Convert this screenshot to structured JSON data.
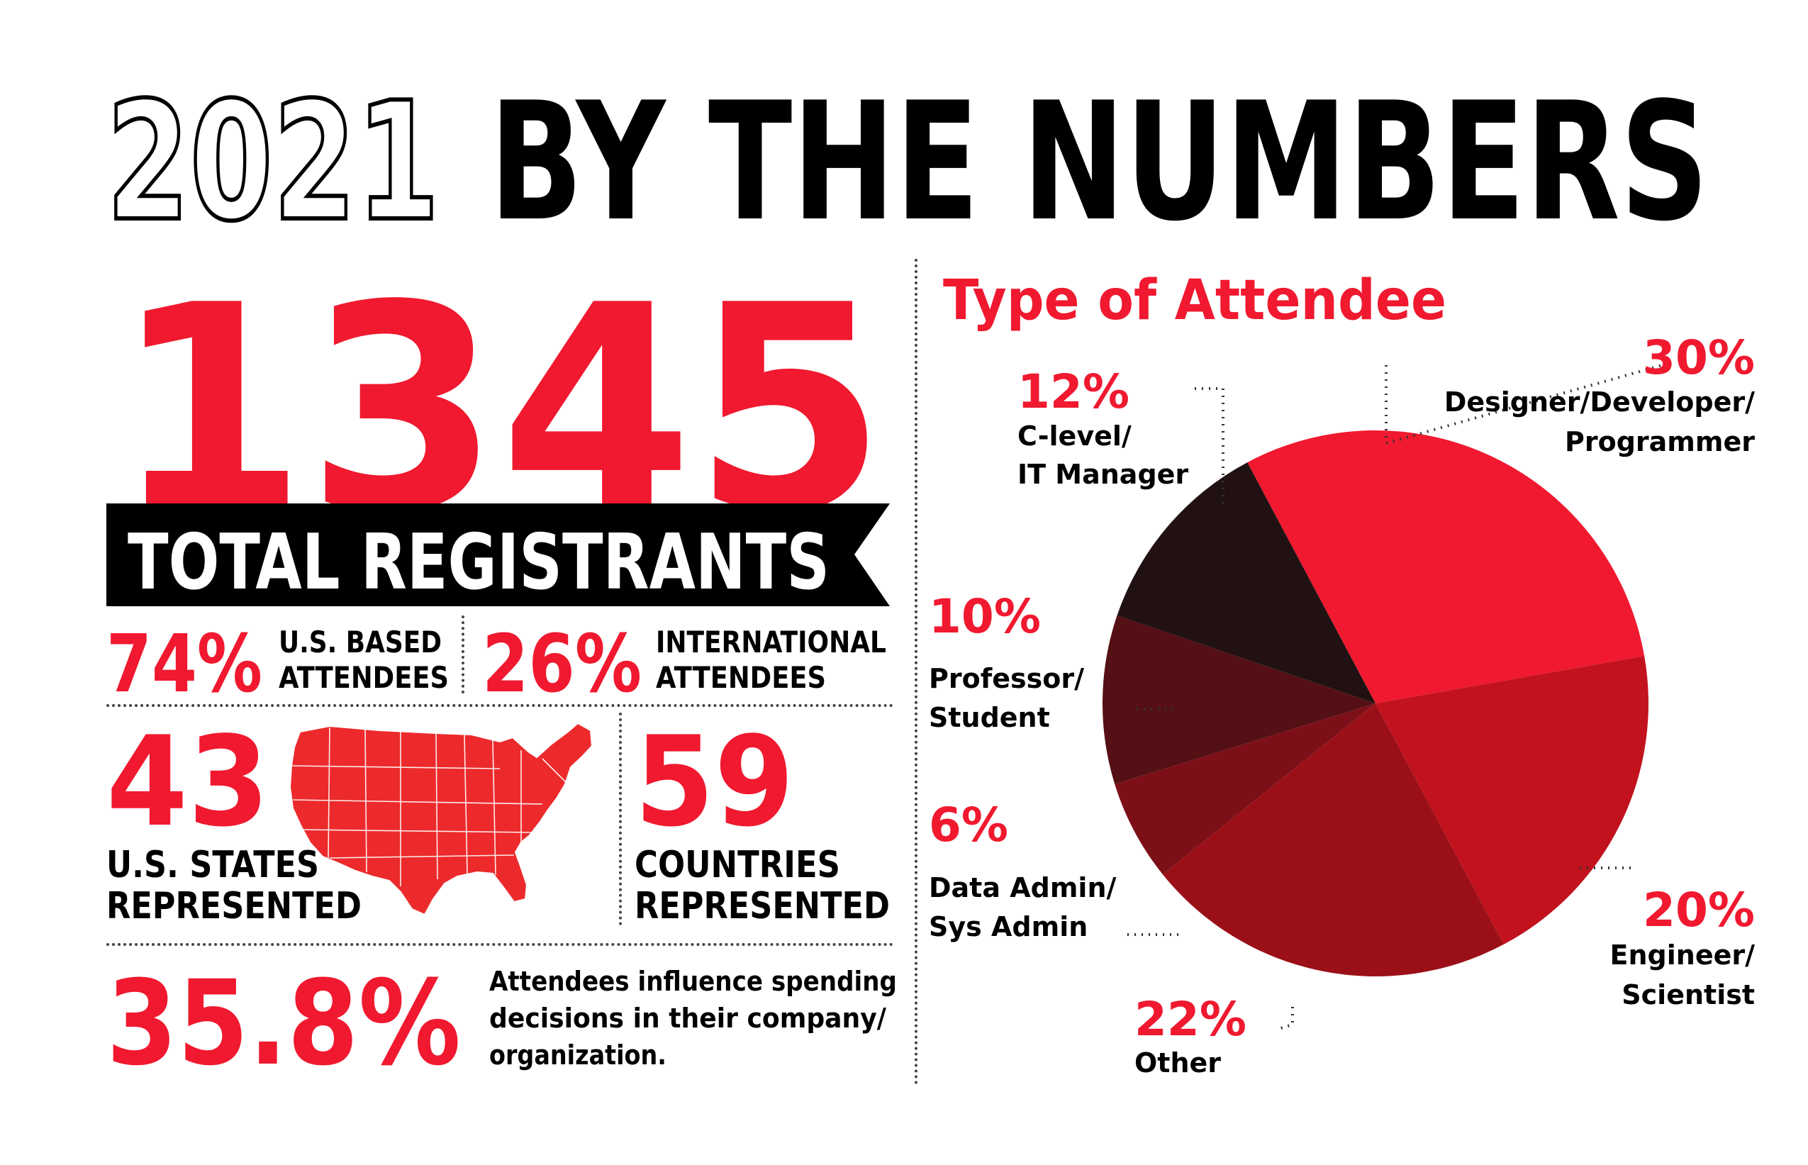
{
  "title": {
    "year": "2021",
    "rest": "BY THE NUMBERS"
  },
  "registrants": {
    "count": "1345",
    "label": "TOTAL REGISTRANTS"
  },
  "attendees": {
    "us_pct": "74%",
    "us_line1": "U.S. BASED",
    "us_line2": "ATTENDEES",
    "intl_pct": "26%",
    "intl_line1": "INTERNATIONAL",
    "intl_line2": "ATTENDEES"
  },
  "states": {
    "count": "43",
    "line1": "U.S. STATES",
    "line2": "REPRESENTED"
  },
  "countries": {
    "count": "59",
    "line1": "COUNTRIES",
    "line2": "REPRESENTED"
  },
  "influence": {
    "pct": "35.8%",
    "line1": "Attendees influence spending",
    "line2": "decisions in their company/",
    "line3": "organization."
  },
  "colors": {
    "accent": "#f0192f",
    "black": "#000000"
  },
  "chart_data": {
    "type": "pie",
    "title": "Type of Attendee",
    "slices": [
      {
        "label": "Designer/Developer/ Programmer",
        "line1": "Designer/Developer/",
        "line2": "Programmer",
        "value": 30,
        "pct_text": "30%",
        "color": "#f0192f"
      },
      {
        "label": "Engineer/ Scientist",
        "line1": "Engineer/",
        "line2": "Scientist",
        "value": 20,
        "pct_text": "20%",
        "color": "#c2121e"
      },
      {
        "label": "Other",
        "line1": "Other",
        "line2": "",
        "value": 22,
        "pct_text": "22%",
        "color": "#9b1018"
      },
      {
        "label": "Data Admin/ Sys Admin",
        "line1": "Data Admin/",
        "line2": "Sys Admin",
        "value": 6,
        "pct_text": "6%",
        "color": "#7c0f18"
      },
      {
        "label": "Professor/ Student",
        "line1": "Professor/",
        "line2": "Student",
        "value": 10,
        "pct_text": "10%",
        "color": "#541014"
      },
      {
        "label": "C-level/ IT Manager",
        "line1": "C-level/",
        "line2": "IT Manager",
        "value": 12,
        "pct_text": "12%",
        "color": "#211112"
      }
    ]
  }
}
